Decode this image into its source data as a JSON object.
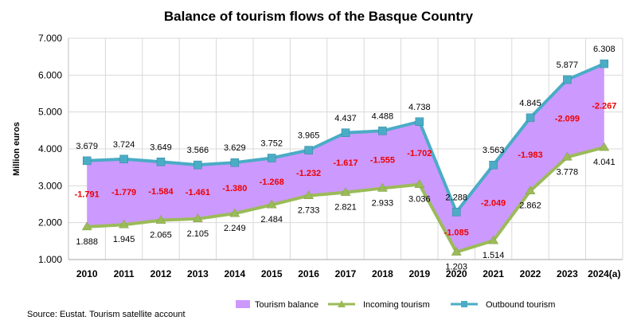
{
  "chart_data": {
    "type": "line",
    "title": "Balance of tourism flows of the Basque Country",
    "ylabel": "Million euros",
    "xlabel": "",
    "categories": [
      "2010",
      "2011",
      "2012",
      "2013",
      "2014",
      "2015",
      "2016",
      "2017",
      "2018",
      "2019",
      "2020",
      "2021",
      "2022",
      "2023",
      "2024(a)"
    ],
    "ylim": [
      1000,
      7000
    ],
    "yticks": [
      1000,
      2000,
      3000,
      4000,
      5000,
      6000,
      7000
    ],
    "ytick_labels": [
      "1.000",
      "2.000",
      "3.000",
      "4.000",
      "5.000",
      "6.000",
      "7.000"
    ],
    "grid": true,
    "legend_position": "bottom",
    "series": [
      {
        "name": "Incoming tourism",
        "color": "#9bbb59",
        "marker": "triangle",
        "values": [
          1888,
          1945,
          2065,
          2105,
          2249,
          2484,
          2733,
          2821,
          2933,
          3036,
          1203,
          1514,
          2862,
          3778,
          4041
        ],
        "labels": [
          "1.888",
          "1.945",
          "2.065",
          "2.105",
          "2.249",
          "2.484",
          "2.733",
          "2.821",
          "2.933",
          "3.036",
          "1.203",
          "1.514",
          "2.862",
          "3.778",
          "4.041"
        ]
      },
      {
        "name": "Outbound tourism",
        "color": "#4bacc6",
        "marker": "square",
        "values": [
          3679,
          3724,
          3649,
          3566,
          3629,
          3752,
          3965,
          4437,
          4488,
          4738,
          2288,
          3563,
          4845,
          5877,
          6308
        ],
        "labels": [
          "3.679",
          "3.724",
          "3.649",
          "3.566",
          "3.629",
          "3.752",
          "3.965",
          "4.437",
          "4.488",
          "4.738",
          "2.288",
          "3.563",
          "4.845",
          "5.877",
          "6.308"
        ]
      },
      {
        "name": "Tourism balance",
        "color": "#cc99ff",
        "values": [
          -1791,
          -1779,
          -1584,
          -1461,
          -1380,
          -1268,
          -1232,
          -1617,
          -1555,
          -1702,
          -1085,
          -2049,
          -1983,
          -2099,
          -2267
        ],
        "labels": [
          "-1.791",
          "-1.779",
          "-1.584",
          "-1.461",
          "-1.380",
          "-1.268",
          "-1.232",
          "-1.617",
          "-1.555",
          "-1.702",
          "-1.085",
          "-2.049",
          "-1.983",
          "-2.099",
          "-2.267"
        ]
      }
    ],
    "legend": [
      "Tourism balance",
      "Incoming tourism",
      "Outbound tourism"
    ]
  },
  "source": "Source: Eustat. Tourism satellite account"
}
